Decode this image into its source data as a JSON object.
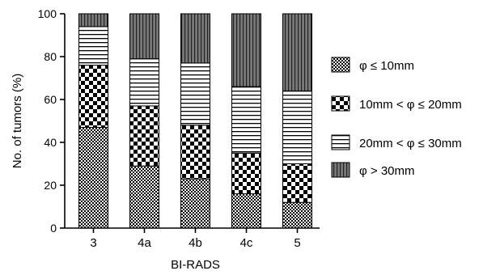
{
  "chart_data": {
    "type": "bar",
    "stacked": true,
    "xlabel": "BI-RADS",
    "ylabel": "No. of tumors (%)",
    "categories": [
      "3",
      "4a",
      "4b",
      "4c",
      "5"
    ],
    "ylim": [
      0,
      100
    ],
    "yticks": [
      "0",
      "20",
      "40",
      "60",
      "80",
      "100"
    ],
    "grid": false,
    "legend_position": "right",
    "series": [
      {
        "name": "φ ≤ 10mm",
        "pattern": "fine-checker",
        "values": [
          47,
          29,
          23,
          16,
          12
        ]
      },
      {
        "name": "10mm < φ ≤ 20mm",
        "pattern": "coarse-checker",
        "values": [
          29,
          28,
          25,
          19,
          18
        ]
      },
      {
        "name": "20mm < φ ≤ 30mm",
        "pattern": "horizontal-lines",
        "values": [
          18,
          22,
          29,
          31,
          34
        ]
      },
      {
        "name": "φ > 30mm",
        "pattern": "vertical-lines",
        "values": [
          6,
          21,
          23,
          34,
          36
        ]
      }
    ],
    "colors": {
      "ink": "#000000",
      "vertical_fill": "#7a7a7a",
      "background": "#ffffff"
    }
  }
}
